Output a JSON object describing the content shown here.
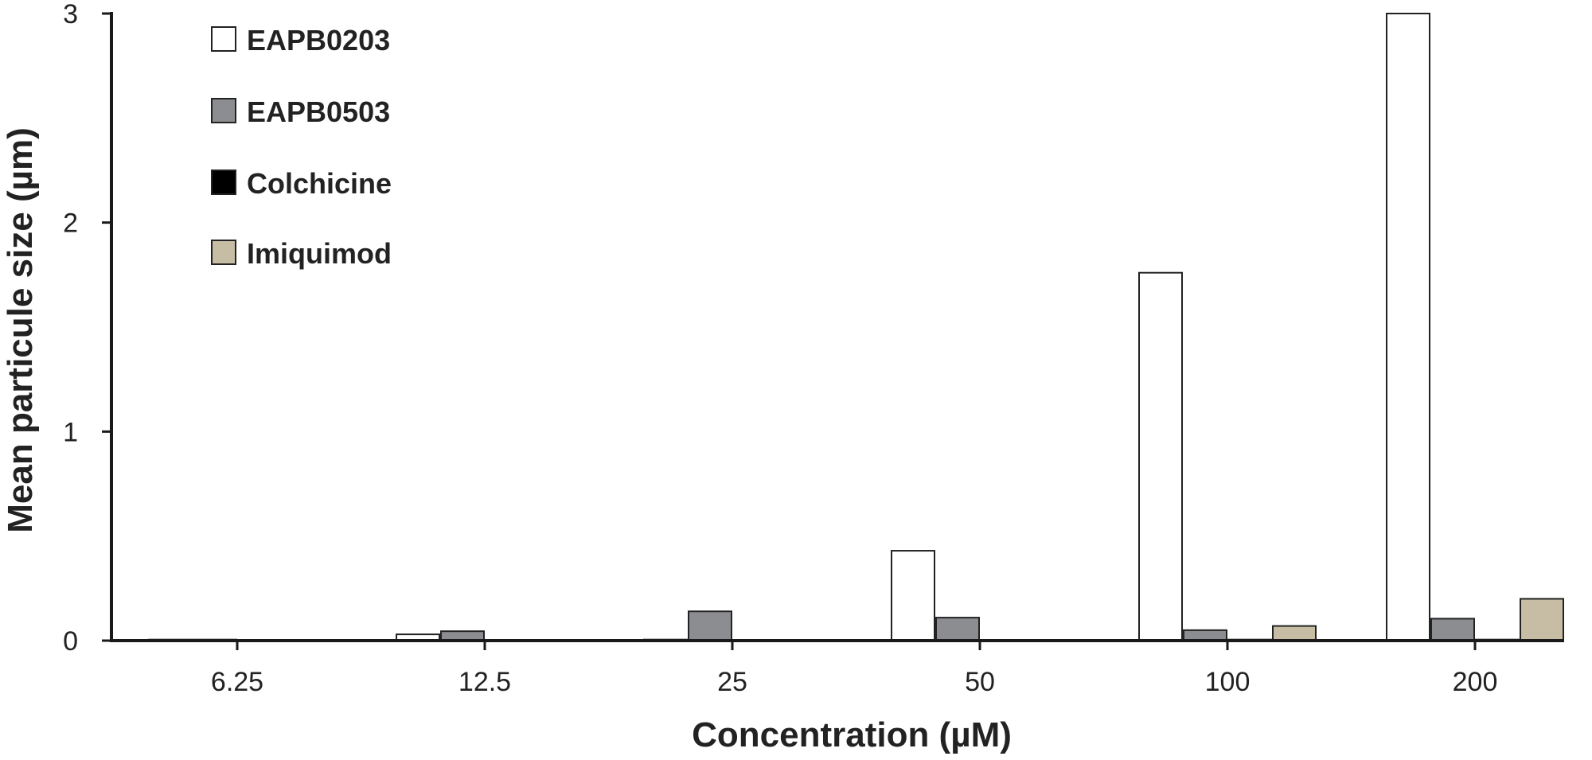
{
  "chart_data": {
    "type": "bar",
    "title": "",
    "xlabel": "Concentration (µM)",
    "ylabel": "Mean particule size (µm)",
    "ylim": [
      0,
      3
    ],
    "yticks": [
      "0",
      "1",
      "2",
      "3"
    ],
    "categories": [
      "6.25",
      "12.5",
      "25",
      "50",
      "100",
      "200"
    ],
    "legend_position": "top-left",
    "series": [
      {
        "name": "EAPB0203",
        "color": "#ffffff",
        "values": [
          0.005,
          0.03,
          0.005,
          0.43,
          1.76,
          3.0
        ]
      },
      {
        "name": "EAPB0503",
        "color": "#8c8d90",
        "values": [
          0.005,
          0.045,
          0.14,
          0.11,
          0.05,
          0.105
        ]
      },
      {
        "name": "Colchicine",
        "color": "#000000",
        "values": [
          0.0,
          0.0,
          0.0,
          0.0,
          0.005,
          0.005
        ]
      },
      {
        "name": "Imiquimod",
        "color": "#c7bda5",
        "values": [
          0.0,
          0.0,
          0.0,
          0.0,
          0.07,
          0.2
        ]
      }
    ]
  }
}
